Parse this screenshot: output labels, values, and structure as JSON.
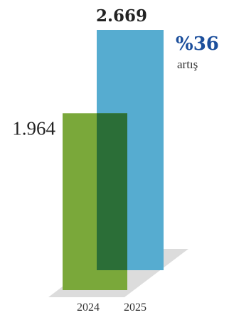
{
  "chart_data": {
    "type": "bar",
    "categories": [
      "2024",
      "2025"
    ],
    "values": [
      1964,
      2669
    ],
    "value_labels": [
      "1.964",
      "2.669"
    ],
    "ylim": [
      0,
      2669
    ],
    "grid": false,
    "annotation": {
      "value": "%36",
      "caption": "artış"
    }
  },
  "colors": {
    "bar_2024": "#7aa83a",
    "bar_2025": "#56acd0",
    "overlap": "#2b6e37",
    "floor": "#dcdcdc",
    "annotation": "#1c4f9c"
  }
}
